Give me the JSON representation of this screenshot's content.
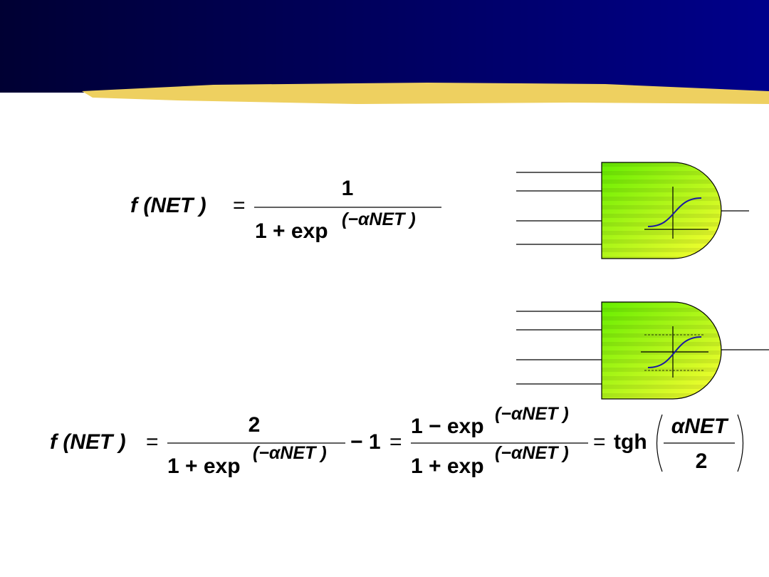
{
  "formula1": {
    "lhs": "f (NET ) ",
    "eq": "=",
    "numerator": "1",
    "denominator_base": "1 + exp",
    "denominator_exponent": "(−αNET )"
  },
  "formula2": {
    "lhs": "f (NET ) ",
    "eq1": "=",
    "term1_numerator": "2",
    "term1_denominator_base": "1 + exp",
    "term1_denominator_exponent": "(−αNET )",
    "minus_one": "− 1",
    "eq2": "=",
    "term2_numerator_base": "1 − exp",
    "term2_numerator_exponent": "(−αNET )",
    "term2_denominator_base": "1 + exp",
    "term2_denominator_exponent": "(−αNET )",
    "eq3": "=",
    "function": "tgh",
    "arg_numerator": "αNET",
    "arg_denominator": "2"
  }
}
